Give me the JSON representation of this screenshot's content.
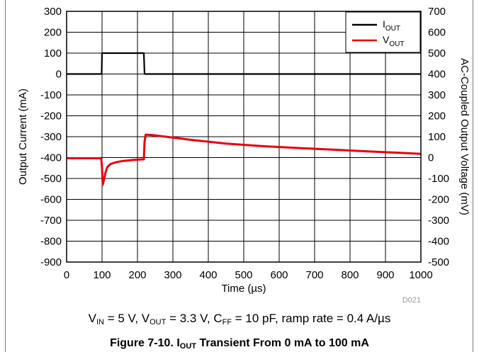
{
  "chart_data": {
    "type": "line",
    "title": "",
    "xlabel": "Time (µs)",
    "ylabel_left": "Output Current (mA)",
    "ylabel_right": "AC-Coupled Output Voltage (mV)",
    "xlim": [
      0,
      1000
    ],
    "ylim_left": [
      -900,
      300
    ],
    "ylim_right": [
      -500,
      700
    ],
    "xticks": [
      "0",
      "100",
      "200",
      "300",
      "400",
      "500",
      "600",
      "700",
      "800",
      "900",
      "1000"
    ],
    "yticks_left": [
      "300",
      "200",
      "100",
      "0",
      "-100",
      "-200",
      "-300",
      "-400",
      "-500",
      "-600",
      "-700",
      "-800",
      "-900"
    ],
    "yticks_right": [
      "700",
      "600",
      "500",
      "400",
      "300",
      "200",
      "100",
      "0",
      "-100",
      "-200",
      "-300",
      "-400",
      "-500"
    ],
    "grid": true,
    "legend_position": "top-right",
    "series": [
      {
        "name": "IOUT",
        "name_main": "I",
        "name_sub": "OUT",
        "axis": "left",
        "color": "#000000",
        "x": [
          0,
          99,
          100,
          102,
          150,
          215,
          218,
          220,
          300,
          500,
          700,
          1000
        ],
        "y": [
          0,
          0,
          100,
          100,
          100,
          100,
          100,
          0,
          0,
          0,
          0,
          0
        ]
      },
      {
        "name": "VOUT",
        "name_main": "V",
        "name_sub": "OUT",
        "axis": "right",
        "color": "#e8000b",
        "x": [
          0,
          95,
          98,
          100,
          102,
          105,
          110,
          115,
          125,
          140,
          160,
          190,
          218,
          220,
          223,
          240,
          280,
          350,
          450,
          550,
          650,
          750,
          850,
          950,
          1000
        ],
        "y": [
          -3,
          -3,
          -8,
          -50,
          -130,
          -110,
          -70,
          -45,
          -30,
          -22,
          -16,
          -11,
          -8,
          75,
          110,
          108,
          100,
          85,
          67,
          55,
          46,
          38,
          30,
          22,
          18
        ]
      }
    ],
    "figure_id": "D021"
  },
  "conditions": {
    "vin_main": "V",
    "vin_sub": "IN",
    "vin_val": " = 5 V, ",
    "vout_main": "V",
    "vout_sub": "OUT",
    "vout_val": " = 3.3 V, ",
    "cff_main": "C",
    "cff_sub": "FF",
    "cff_val": " = 10 pF, ramp rate = 0.4 A/µs"
  },
  "caption": {
    "prefix": "Figure 7-10. I",
    "sub": "OUT",
    "suffix": " Transient From 0 mA to 100 mA"
  }
}
